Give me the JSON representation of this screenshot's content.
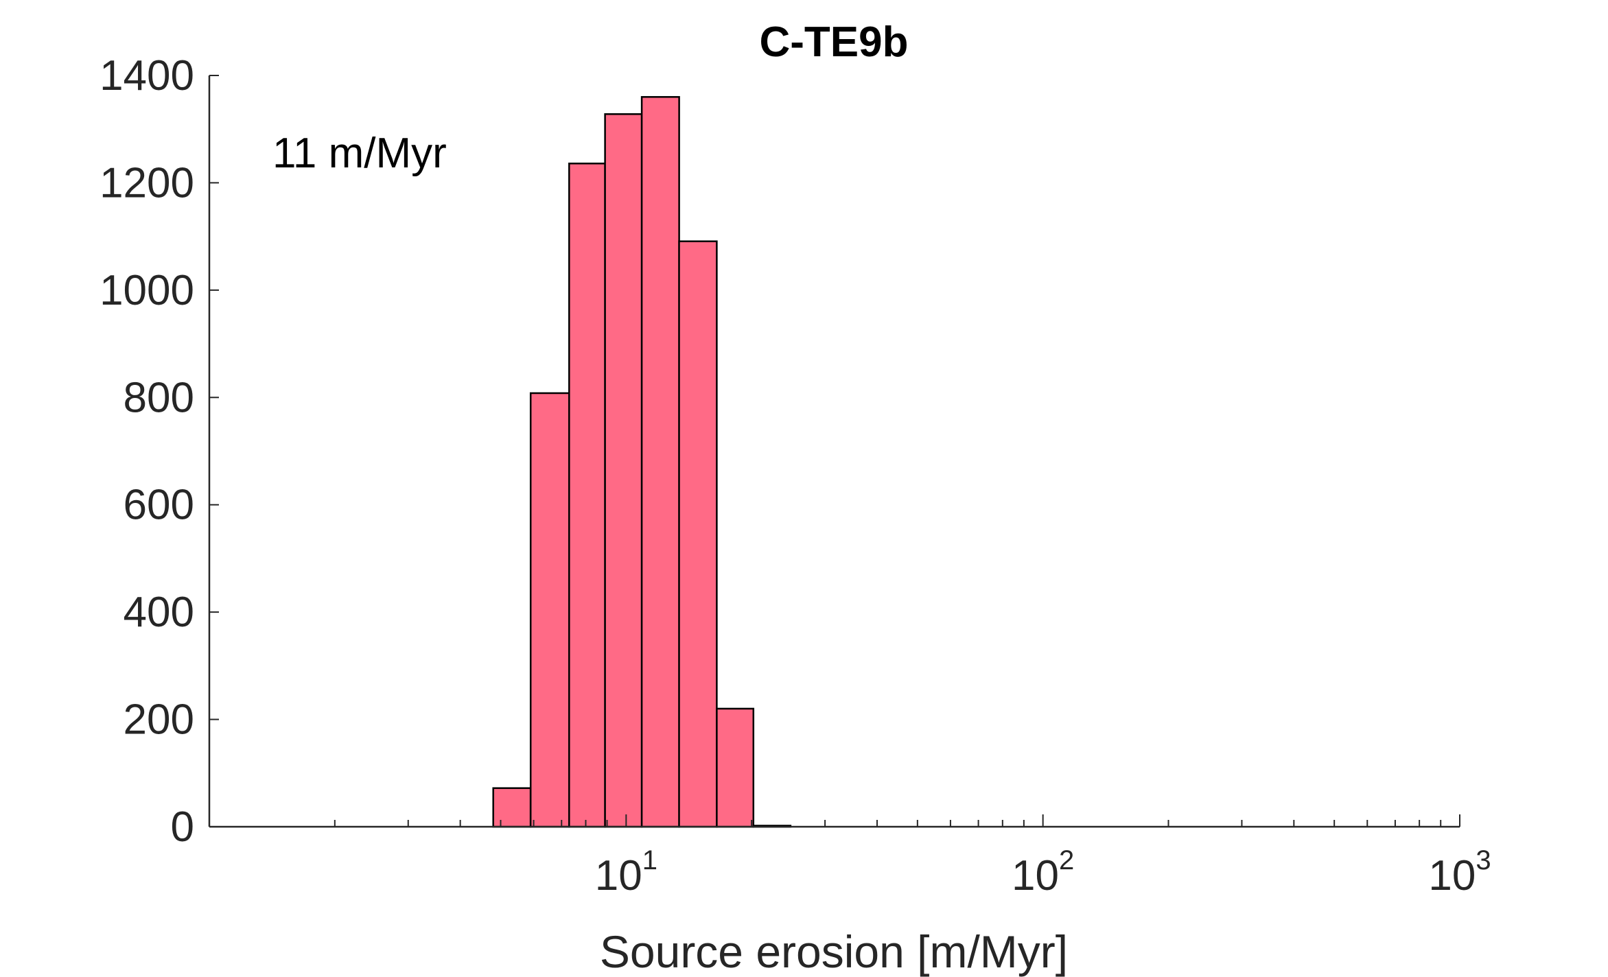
{
  "chart_data": {
    "type": "bar",
    "title": "C-TE9b",
    "xlabel": "Source erosion [m/Myr]",
    "ylabel": "",
    "x_scale": "log",
    "xlim": [
      1,
      1000
    ],
    "ylim": [
      0,
      1400
    ],
    "grid": false,
    "bar_color": "#ff6a86",
    "annotation": "11 m/Myr",
    "x_ticks": [
      {
        "value": 10,
        "base": "10",
        "exponent": "1"
      },
      {
        "value": 100,
        "base": "10",
        "exponent": "2"
      },
      {
        "value": 1000,
        "base": "10",
        "exponent": "3"
      }
    ],
    "y_ticks": [
      {
        "value": 0,
        "label": "0"
      },
      {
        "value": 200,
        "label": "200"
      },
      {
        "value": 400,
        "label": "400"
      },
      {
        "value": 600,
        "label": "600"
      },
      {
        "value": 800,
        "label": "800"
      },
      {
        "value": 1000,
        "label": "1000"
      },
      {
        "value": 1200,
        "label": "1200"
      },
      {
        "value": 1400,
        "label": "1400"
      }
    ],
    "bins": [
      {
        "x_start": 4.8,
        "x_end": 5.9,
        "count": 72
      },
      {
        "x_start": 5.9,
        "x_end": 7.3,
        "count": 808
      },
      {
        "x_start": 7.3,
        "x_end": 8.9,
        "count": 1236
      },
      {
        "x_start": 8.9,
        "x_end": 10.9,
        "count": 1328
      },
      {
        "x_start": 10.9,
        "x_end": 13.4,
        "count": 1360
      },
      {
        "x_start": 13.4,
        "x_end": 16.5,
        "count": 1091
      },
      {
        "x_start": 16.5,
        "x_end": 20.2,
        "count": 220
      },
      {
        "x_start": 20.2,
        "x_end": 24.8,
        "count": 2
      }
    ]
  }
}
